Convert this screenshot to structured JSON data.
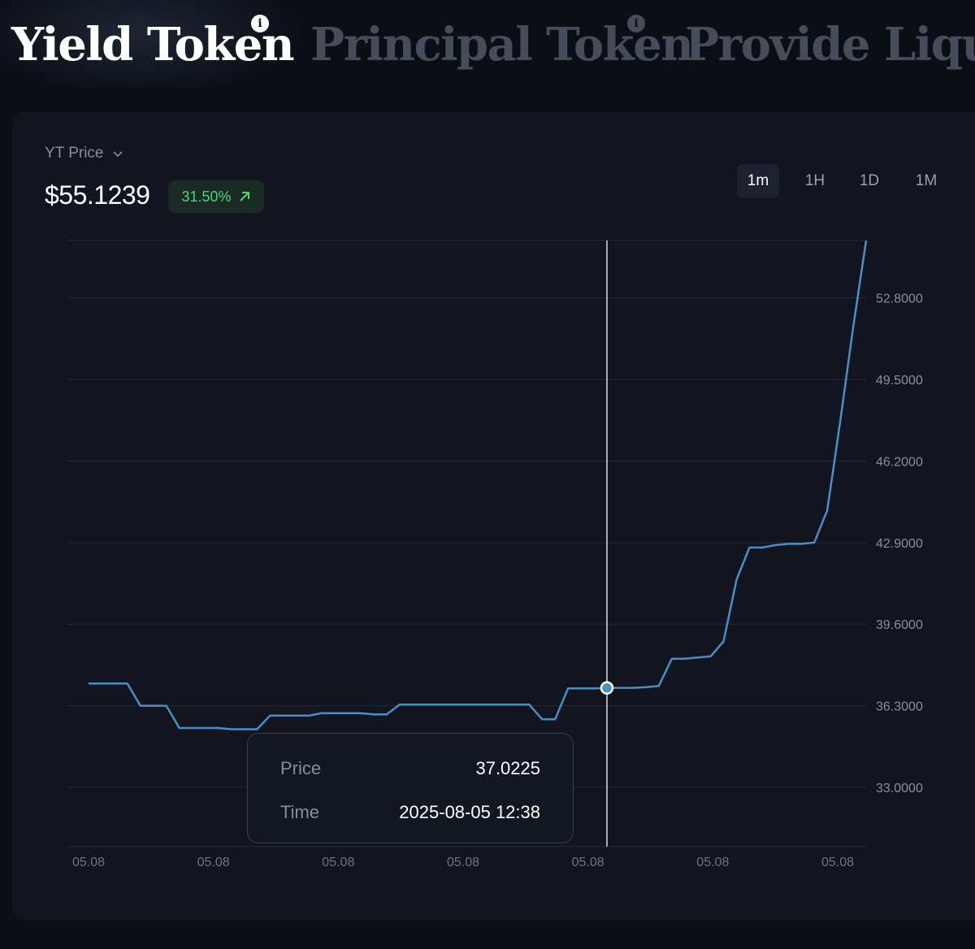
{
  "tabs": [
    {
      "label": "Yield Token",
      "active": true
    },
    {
      "label": "Principal Token",
      "active": false
    },
    {
      "label": "Provide Liquidity",
      "active": false
    }
  ],
  "metric": {
    "label": "YT Price",
    "price": "$55.1239",
    "change": "31.50%"
  },
  "ranges": [
    "1m",
    "1H",
    "1D",
    "1M"
  ],
  "active_range": "1m",
  "tooltip": {
    "price_label": "Price",
    "price_value": "37.0225",
    "time_label": "Time",
    "time_value": "2025-08-05 12:38"
  },
  "colors": {
    "line": "#4a8ec4",
    "up": "#4fd17d"
  },
  "chart_data": {
    "type": "line",
    "title": "YT Price",
    "ylabel": "",
    "xlabel": "",
    "ylim": [
      30.6,
      55.1239
    ],
    "y_ticks": [
      33.0,
      36.3,
      39.6,
      42.9,
      46.2,
      49.5,
      52.8
    ],
    "y_tick_labels": [
      "33.0000",
      "36.3000",
      "39.6000",
      "42.9000",
      "46.2000",
      "49.5000",
      "52.8000"
    ],
    "x_tick_labels": [
      "05.08",
      "05.08",
      "05.08",
      "05.08",
      "05.08",
      "05.08",
      "05.08"
    ],
    "xlim": [
      0,
      60
    ],
    "hover_index": 40,
    "series": [
      {
        "name": "YT Price",
        "x": [
          0,
          1,
          2,
          3,
          4,
          5,
          6,
          7,
          8,
          9,
          10,
          11,
          12,
          13,
          14,
          15,
          16,
          17,
          18,
          19,
          20,
          21,
          22,
          23,
          24,
          25,
          26,
          27,
          28,
          29,
          30,
          31,
          32,
          33,
          34,
          35,
          36,
          37,
          38,
          39,
          40,
          41,
          42,
          43,
          44,
          45,
          46,
          47,
          48,
          49,
          50,
          51,
          52,
          53,
          54,
          55,
          56,
          57,
          58,
          59,
          60
        ],
        "values": [
          37.2,
          37.2,
          37.2,
          37.2,
          36.3,
          36.3,
          36.3,
          35.4,
          35.4,
          35.4,
          35.4,
          35.35,
          35.35,
          35.35,
          35.9,
          35.9,
          35.9,
          35.9,
          36.0,
          36.0,
          36.0,
          36.0,
          35.95,
          35.95,
          36.35,
          36.35,
          36.35,
          36.35,
          36.35,
          36.35,
          36.35,
          36.35,
          36.35,
          36.35,
          36.35,
          35.75,
          35.75,
          37.0,
          37.0,
          37.0,
          37.0225,
          37.0225,
          37.0225,
          37.05,
          37.1,
          38.2,
          38.2,
          38.25,
          38.3,
          38.9,
          41.4,
          42.7,
          42.7,
          42.8,
          42.85,
          42.85,
          42.9,
          44.2,
          47.8,
          51.6,
          55.1239
        ]
      }
    ]
  }
}
